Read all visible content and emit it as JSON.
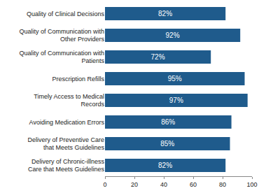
{
  "chart_data": {
    "type": "bar",
    "orientation": "horizontal",
    "categories": [
      "Quality of Clinical Decisions",
      "Quality of Communication with Other Providers",
      "Quality of Communication with Patients",
      "Prescription Refills",
      "Timely Access to Medical Records",
      "Avoiding Medication Errors",
      "Delivery of Preventive Care that Meets Guidelines",
      "Delivery of Chronic-illness Care that Meets Guidelines"
    ],
    "values": [
      82,
      92,
      72,
      95,
      97,
      86,
      85,
      82
    ],
    "value_labels": [
      "82%",
      "92%",
      "72%",
      "95%",
      "97%",
      "86%",
      "85%",
      "82%"
    ],
    "data_labels": true,
    "color": "#1f5b8c",
    "xlim": [
      0,
      100
    ],
    "xticks": [
      0,
      20,
      40,
      60,
      80,
      100
    ],
    "grid": false
  }
}
